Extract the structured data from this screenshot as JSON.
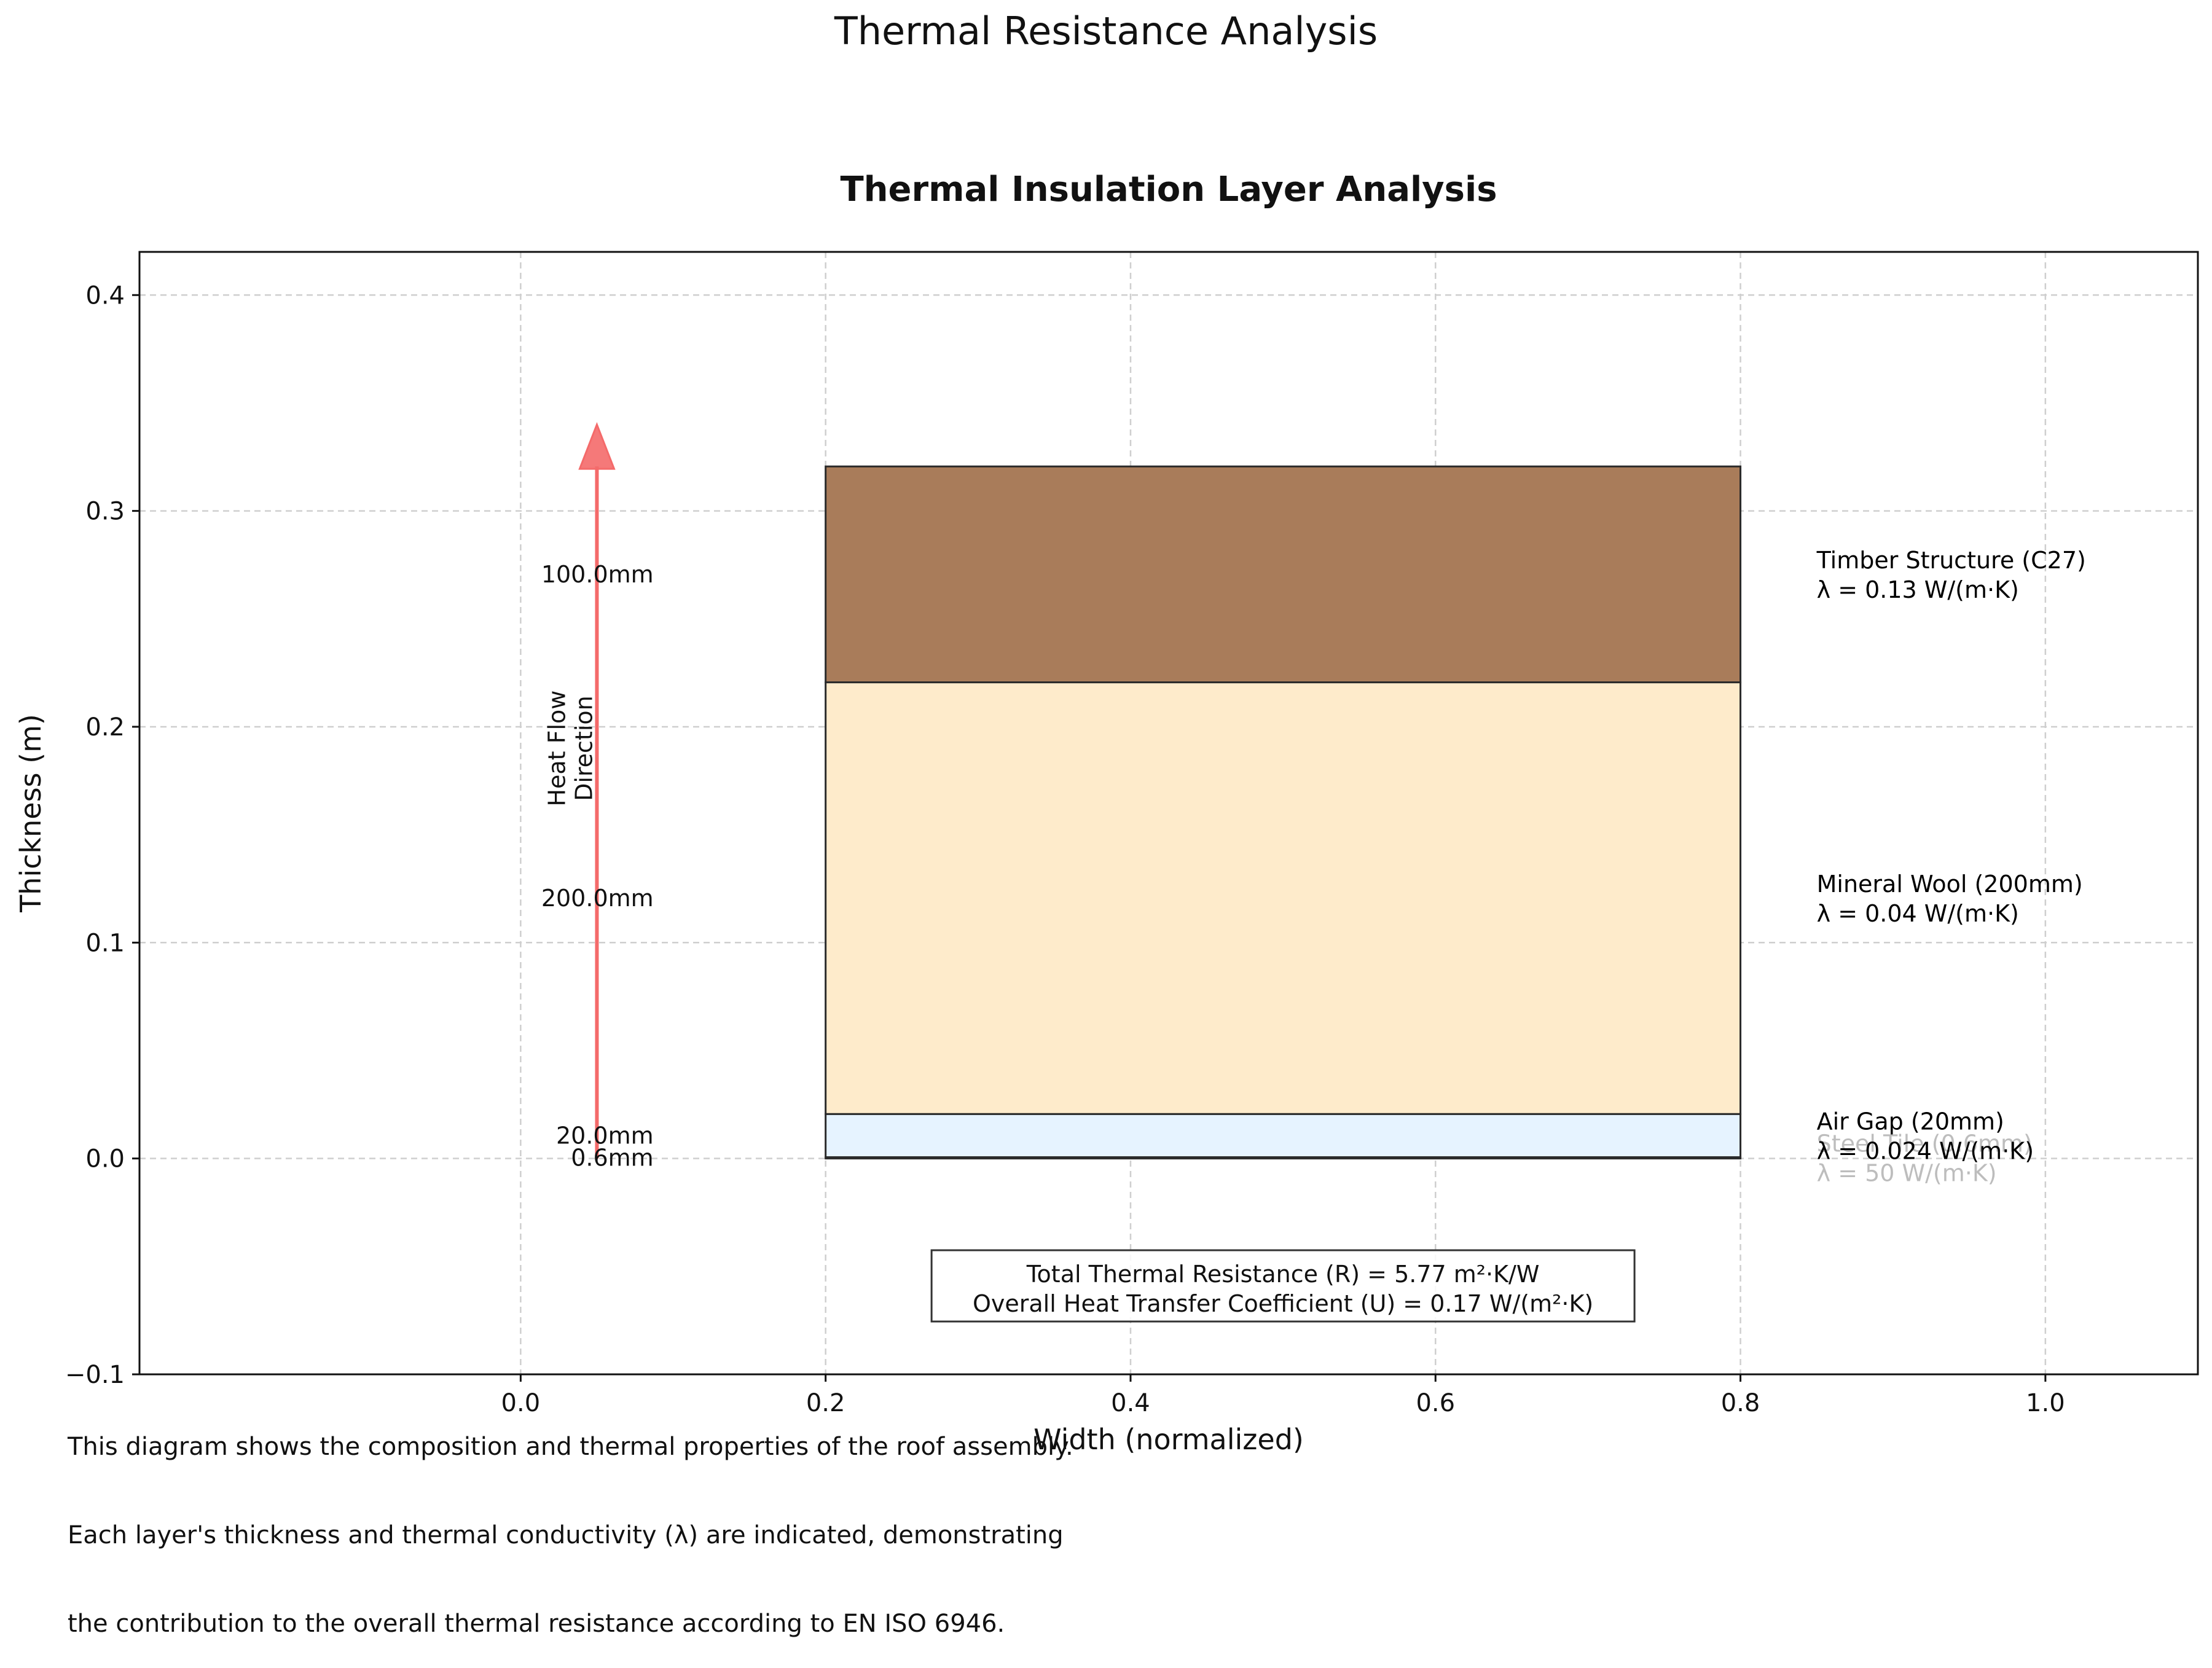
{
  "figure": {
    "suptitle": "Thermal Resistance Analysis",
    "caption_lines": [
      "This diagram shows the composition and thermal properties of the roof assembly.",
      "Each layer's thickness and thermal conductivity (λ) are indicated, demonstrating",
      "the contribution to the overall thermal resistance according to EN ISO 6946."
    ]
  },
  "chart_data": {
    "type": "bar",
    "title": "Thermal Insulation Layer Analysis",
    "xlabel": "Width (normalized)",
    "ylabel": "Thickness (m)",
    "xlim": [
      -0.25,
      1.1
    ],
    "ylim": [
      -0.1,
      0.42
    ],
    "xticks": [
      0.0,
      0.2,
      0.4,
      0.6,
      0.8,
      1.0
    ],
    "xtick_labels": [
      "0.0",
      "0.2",
      "0.4",
      "0.6",
      "0.8",
      "1.0"
    ],
    "yticks": [
      -0.1,
      0.0,
      0.1,
      0.2,
      0.3,
      0.4
    ],
    "ytick_labels": [
      "−0.1",
      "0.0",
      "0.1",
      "0.2",
      "0.3",
      "0.4"
    ],
    "grid": true,
    "layers": [
      {
        "name": "Steel Tile (0.6mm)",
        "lambda_label": "λ = 50 W/(m·K)",
        "thickness_label": "0.6mm",
        "bottom": 0.0,
        "top": 0.0006,
        "x_start": 0.2,
        "x_end": 0.8,
        "color": "#c8c8c8",
        "label_color": "#bdbdbd"
      },
      {
        "name": "Air Gap (20mm)",
        "lambda_label": "λ = 0.024 W/(m·K)",
        "thickness_label": "20.0mm",
        "bottom": 0.0006,
        "top": 0.0206,
        "x_start": 0.2,
        "x_end": 0.8,
        "color": "#e6f3ff",
        "label_color": "#000000"
      },
      {
        "name": "Mineral Wool (200mm)",
        "lambda_label": "λ = 0.04 W/(m·K)",
        "thickness_label": "200.0mm",
        "bottom": 0.0206,
        "top": 0.2206,
        "x_start": 0.2,
        "x_end": 0.8,
        "color": "#feebcb",
        "label_color": "#000000"
      },
      {
        "name": "Timber Structure (C27)",
        "lambda_label": "λ = 0.13 W/(m·K)",
        "thickness_label": "100.0mm",
        "bottom": 0.2206,
        "top": 0.3206,
        "x_start": 0.2,
        "x_end": 0.8,
        "color": "#a97c5a",
        "label_color": "#000000"
      }
    ],
    "heat_flow": {
      "label": "Heat Flow Direction",
      "x": 0.05,
      "y_start": 0.0,
      "y_end": 0.34,
      "color": "#f46a6a"
    },
    "summary": {
      "r_text": "Total Thermal Resistance (R) = 5.77 m²·K/W",
      "u_text": "Overall Heat Transfer Coefficient (U) = 0.17 W/(m²·K)"
    }
  }
}
